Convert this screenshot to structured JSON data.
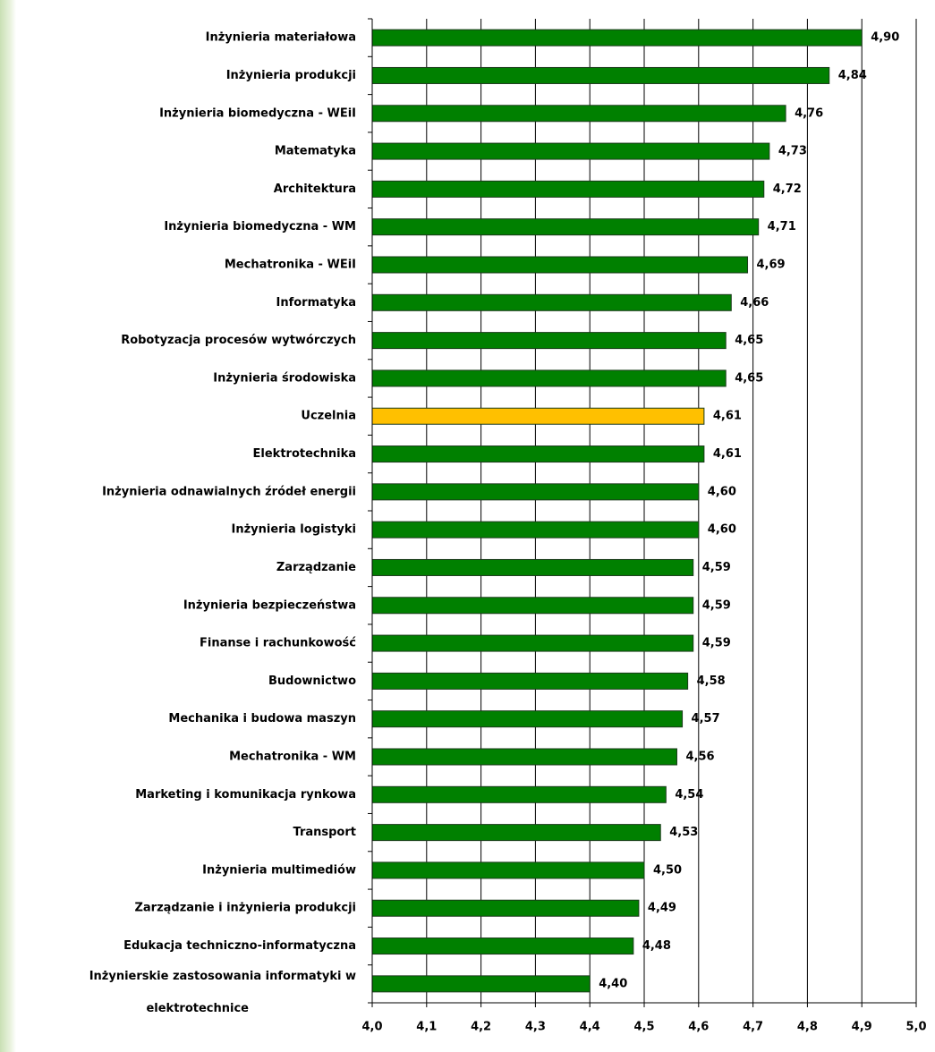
{
  "chart_data": {
    "type": "bar",
    "orientation": "horizontal",
    "categories": [
      "Inżynieria materiałowa",
      "Inżynieria produkcji",
      "Inżynieria biomedyczna - WEiI",
      "Matematyka",
      "Architektura",
      "Inżynieria biomedyczna - WM",
      "Mechatronika - WEiI",
      "Informatyka",
      "Robotyzacja procesów wytwórczych",
      "Inżynieria środowiska",
      "Uczelnia",
      "Elektrotechnika",
      "Inżynieria odnawialnych źródeł energii",
      "Inżynieria logistyki",
      "Zarządzanie",
      "Inżynieria bezpieczeństwa",
      "Finanse i rachunkowość",
      "Budownictwo",
      "Mechanika i budowa maszyn",
      "Mechatronika - WM",
      "Marketing i komunikacja rynkowa",
      "Transport",
      "Inżynieria multimediów",
      "Zarządzanie i inżynieria produkcji",
      "Edukacja techniczno-informatyczna",
      "Inżynierskie zastosowania informatyki w\nelektrotechnice"
    ],
    "values": [
      4.9,
      4.84,
      4.76,
      4.73,
      4.72,
      4.71,
      4.69,
      4.66,
      4.65,
      4.65,
      4.61,
      4.61,
      4.6,
      4.6,
      4.59,
      4.59,
      4.59,
      4.58,
      4.57,
      4.56,
      4.54,
      4.53,
      4.5,
      4.49,
      4.48,
      4.4
    ],
    "value_labels": [
      "4,90",
      "4,84",
      "4,76",
      "4,73",
      "4,72",
      "4,71",
      "4,69",
      "4,66",
      "4,65",
      "4,65",
      "4,61",
      "4,61",
      "4,60",
      "4,60",
      "4,59",
      "4,59",
      "4,59",
      "4,58",
      "4,57",
      "4,56",
      "4,54",
      "4,53",
      "4,50",
      "4,49",
      "4,48",
      "4,40"
    ],
    "colors": [
      "#008000",
      "#008000",
      "#008000",
      "#008000",
      "#008000",
      "#008000",
      "#008000",
      "#008000",
      "#008000",
      "#008000",
      "#ffc000",
      "#008000",
      "#008000",
      "#008000",
      "#008000",
      "#008000",
      "#008000",
      "#008000",
      "#008000",
      "#008000",
      "#008000",
      "#008000",
      "#008000",
      "#008000",
      "#008000",
      "#008000"
    ],
    "xlim": [
      4.0,
      5.0
    ],
    "xticks": [
      {
        "value": 4.0,
        "label": "4,0"
      },
      {
        "value": 4.1,
        "label": "4,1"
      },
      {
        "value": 4.2,
        "label": "4,2"
      },
      {
        "value": 4.3,
        "label": "4,3"
      },
      {
        "value": 4.4,
        "label": "4,4"
      },
      {
        "value": 4.5,
        "label": "4,5"
      },
      {
        "value": 4.6,
        "label": "4,6"
      },
      {
        "value": 4.7,
        "label": "4,7"
      },
      {
        "value": 4.8,
        "label": "4,8"
      },
      {
        "value": 4.9,
        "label": "4,9"
      },
      {
        "value": 5.0,
        "label": "5,0"
      }
    ],
    "grid": true
  }
}
